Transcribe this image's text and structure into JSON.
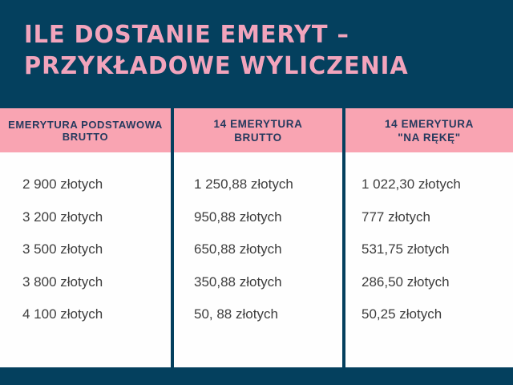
{
  "title": {
    "line1": "ILE DOSTANIE EMERYT –",
    "line2": "PRZYKŁADOWE WYLICZENIA"
  },
  "colors": {
    "background_navy": "#04405e",
    "header_pink": "#f9a4b2",
    "title_pink": "#f2a4bc",
    "header_text_navy": "#263a5e",
    "body_text_gray": "#3e3e3e",
    "cell_white": "#fefefe"
  },
  "chart_data": {
    "type": "table",
    "title": "ILE DOSTANIE EMERYT – PRZYKŁADOWE WYLICZENIA",
    "columns": [
      {
        "header": [
          "EMERYTURA PODSTAWOWA",
          "BRUTTO"
        ],
        "values": [
          "2 900 złotych",
          "3 200 złotych",
          "3 500 złotych",
          "3 800 złotych",
          "4 100 złotych"
        ]
      },
      {
        "header": [
          "14 EMERYTURA",
          "BRUTTO"
        ],
        "values": [
          "1 250,88 złotych",
          "950,88 złotych",
          "650,88 złotych",
          "350,88 złotych",
          "50, 88 złotych"
        ]
      },
      {
        "header": [
          "14 EMERYTURA",
          "\"NA RĘKĘ\""
        ],
        "values": [
          "1 022,30 złotych",
          "777 złotych",
          "531,75 złotych",
          "286,50 złotych",
          "50,25 złotych"
        ]
      }
    ]
  }
}
